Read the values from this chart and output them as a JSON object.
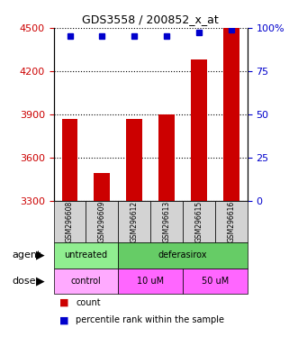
{
  "title": "GDS3558 / 200852_x_at",
  "samples": [
    "GSM296608",
    "GSM296609",
    "GSM296612",
    "GSM296613",
    "GSM296615",
    "GSM296616"
  ],
  "bar_values": [
    3870,
    3490,
    3870,
    3900,
    4280,
    4500
  ],
  "percentile_values": [
    95,
    95,
    95,
    95,
    97,
    99
  ],
  "bar_color": "#cc0000",
  "dot_color": "#0000cc",
  "ylim_left": [
    3300,
    4500
  ],
  "ylim_right": [
    0,
    100
  ],
  "yticks_left": [
    3300,
    3600,
    3900,
    4200,
    4500
  ],
  "yticks_right": [
    0,
    25,
    50,
    75,
    100
  ],
  "agent_groups": [
    {
      "label": "untreated",
      "start": 0,
      "end": 2,
      "color": "#90ee90"
    },
    {
      "label": "deferasirox",
      "start": 2,
      "end": 6,
      "color": "#ff80ff"
    }
  ],
  "dose_groups": [
    {
      "label": "control",
      "start": 0,
      "end": 2,
      "color": "#ffaaff"
    },
    {
      "label": "10 uM",
      "start": 2,
      "end": 4,
      "color": "#ff80ff"
    },
    {
      "label": "50 uM",
      "start": 4,
      "end": 6,
      "color": "#ff80ff"
    }
  ],
  "agent_label": "agent",
  "dose_label": "dose",
  "legend_count_color": "#cc0000",
  "legend_dot_color": "#0000cc",
  "legend_count_text": "count",
  "legend_percentile_text": "percentile rank within the sample",
  "background_plot": "#ffffff",
  "tick_label_color_left": "#cc0000",
  "tick_label_color_right": "#0000cc"
}
